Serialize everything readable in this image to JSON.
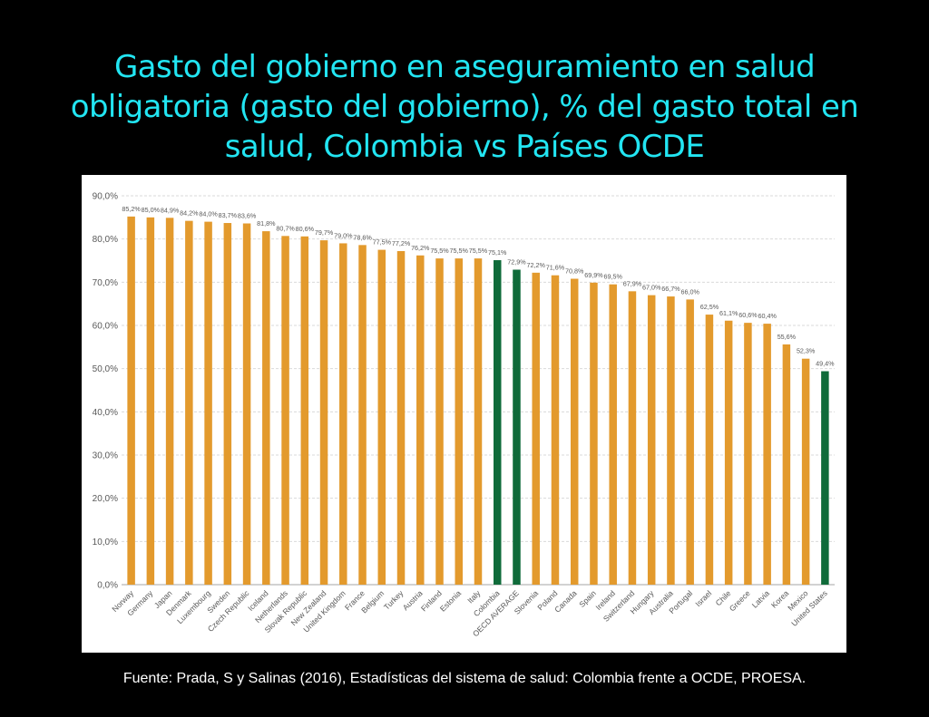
{
  "slide": {
    "title": "Gasto del gobierno en aseguramiento en salud obligatoria (gasto del gobierno), % del gasto total en salud, Colombia vs Países OCDE",
    "source": "Fuente: Prada, S y Salinas (2016), Estadísticas del sistema de salud: Colombia frente a OCDE, PROESA."
  },
  "chart_data": {
    "type": "bar",
    "title": "",
    "xlabel": "",
    "ylabel": "",
    "ylim": [
      0,
      90
    ],
    "yticks": [
      "0,0%",
      "10,0%",
      "20,0%",
      "30,0%",
      "40,0%",
      "50,0%",
      "60,0%",
      "70,0%",
      "80,0%",
      "90,0%"
    ],
    "grid": true,
    "categories": [
      "Norway",
      "Germany",
      "Japan",
      "Denmark",
      "Luxembourg",
      "Sweden",
      "Czech Republic",
      "Iceland",
      "Netherlands",
      "Slovak Republic",
      "New Zealand",
      "United Kingdom",
      "France",
      "Belgium",
      "Turkey",
      "Austria",
      "Finland",
      "Estonia",
      "Italy",
      "Colombia",
      "OECD AVERAGE",
      "Slovenia",
      "Poland",
      "Canada",
      "Spain",
      "Ireland",
      "Switzerland",
      "Hungary",
      "Australia",
      "Portugal",
      "Israel",
      "Chile",
      "Greece",
      "Latvia",
      "Korea",
      "Mexico",
      "United States"
    ],
    "values": [
      85.2,
      85.0,
      84.9,
      84.2,
      84.0,
      83.7,
      83.6,
      81.8,
      80.7,
      80.6,
      79.7,
      79.0,
      78.6,
      77.5,
      77.2,
      76.2,
      75.5,
      75.5,
      75.5,
      75.1,
      72.9,
      72.2,
      71.6,
      70.8,
      69.9,
      69.5,
      67.9,
      67.0,
      66.7,
      66.0,
      62.5,
      61.1,
      60.6,
      60.4,
      55.6,
      52.3,
      49.4
    ],
    "data_labels": [
      "85,2%",
      "85,0%",
      "84,9%",
      "84,2%",
      "84,0%",
      "83,7%",
      "83,6%",
      "81,8%",
      "80,7%",
      "80,6%",
      "79,7%",
      "79,0%",
      "78,6%",
      "77,5%",
      "77,2%",
      "76,2%",
      "75,5%",
      "75,5%",
      "75,5%",
      "75,1%",
      "72,9%",
      "72,2%",
      "71,6%",
      "70,8%",
      "69,9%",
      "69,5%",
      "67,9%",
      "67,0%",
      "66,7%",
      "66,0%",
      "62,5%",
      "61,1%",
      "60,6%",
      "60,4%",
      "55,6%",
      "52,3%",
      "49,4%"
    ],
    "highlighted": [
      "Colombia",
      "OECD AVERAGE",
      "United States"
    ],
    "colors": {
      "default": "#e39a2d",
      "highlight": "#0f6b3a",
      "grid": "#d9d9d9",
      "axis": "#a6a6a6",
      "text": "#595959"
    }
  }
}
